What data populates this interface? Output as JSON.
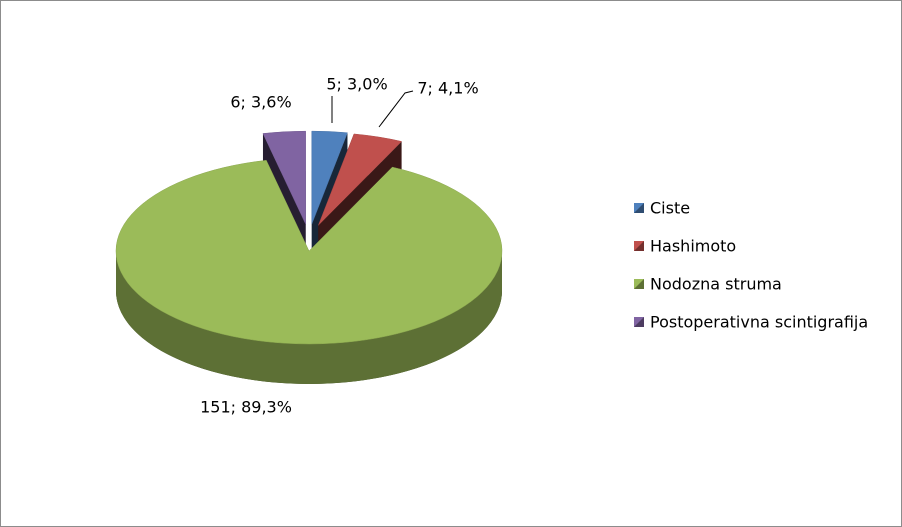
{
  "chart_data": {
    "type": "pie",
    "categories": [
      "Ciste",
      "Hashimoto",
      "Nodozna struma",
      "Postoperativna scintigrafija"
    ],
    "values": [
      5,
      7,
      151,
      6
    ],
    "value_labels": [
      "5; 3,0%",
      "7; 4,1%",
      "151; 89,3%",
      "6; 3,6%"
    ],
    "colors": [
      "#4f81bd",
      "#c0504d",
      "#9bbb59",
      "#8064a2"
    ],
    "legend": "right"
  }
}
